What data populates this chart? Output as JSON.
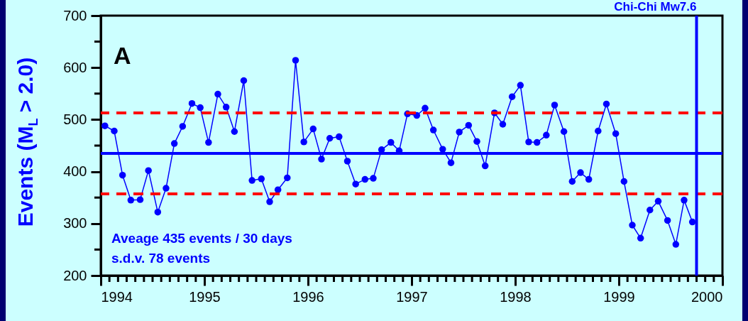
{
  "chart_data": {
    "type": "line",
    "ylabel": "Events (M$_{L}$ > 2.0)",
    "annotations": [
      "A",
      "Aveage 435 events / 30 days",
      "s.d.v. 78 events"
    ],
    "x": [
      1994.04,
      1994.13,
      1994.21,
      1994.29,
      1994.38,
      1994.46,
      1994.55,
      1994.63,
      1994.71,
      1994.79,
      1994.88,
      1994.96,
      1995.04,
      1995.13,
      1995.21,
      1995.29,
      1995.38,
      1995.46,
      1995.55,
      1995.63,
      1995.71,
      1995.8,
      1995.88,
      1995.96,
      1996.05,
      1996.13,
      1996.21,
      1996.3,
      1996.38,
      1996.46,
      1996.55,
      1996.63,
      1996.71,
      1996.8,
      1996.88,
      1996.96,
      1997.05,
      1997.13,
      1997.21,
      1997.3,
      1997.38,
      1997.46,
      1997.55,
      1997.63,
      1997.71,
      1997.8,
      1997.88,
      1997.97,
      1998.05,
      1998.13,
      1998.21,
      1998.3,
      1998.38,
      1998.47,
      1998.55,
      1998.63,
      1998.71,
      1998.8,
      1998.88,
      1998.97,
      1999.05,
      1999.13,
      1999.21,
      1999.3,
      1999.38,
      1999.47,
      1999.55,
      1999.63,
      1999.71
    ],
    "series": [
      {
        "color": "#0000ff",
        "values": [
          488,
          478,
          393,
          345,
          346,
          402,
          322,
          368,
          454,
          487,
          531,
          523,
          456,
          549,
          524,
          477,
          575,
          383,
          386,
          342,
          365,
          388,
          614,
          457,
          482,
          424,
          464,
          467,
          420,
          376,
          385,
          387,
          442,
          456,
          440,
          511,
          508,
          522,
          480,
          443,
          417,
          476,
          489,
          458,
          411,
          513,
          491,
          544,
          566,
          457,
          456,
          470,
          528,
          477,
          381,
          398,
          385,
          478,
          530,
          473,
          381,
          297,
          272,
          326,
          343,
          306,
          260,
          345,
          303
        ]
      }
    ],
    "marker": "circle",
    "line_style": "solid",
    "xlim": [
      1994,
      2000
    ],
    "ylim": [
      200,
      700
    ],
    "xticks": [
      1994,
      {
        "value": 1994.0833,
        "label": null
      },
      {
        "value": 1994.1667,
        "label": null
      },
      {
        "value": 1994.25,
        "label": null
      },
      {
        "value": 1994.3333,
        "label": null
      },
      {
        "value": 1994.4167,
        "label": null
      },
      {
        "value": 1994.5,
        "label": null
      },
      {
        "value": 1994.5833,
        "label": null
      },
      {
        "value": 1994.6667,
        "label": null
      },
      {
        "value": 1994.75,
        "label": null
      },
      {
        "value": 1994.8333,
        "label": null
      },
      {
        "value": 1994.9167,
        "label": null
      },
      1995,
      {
        "value": 1995.0833,
        "label": null
      },
      {
        "value": 1995.1667,
        "label": null
      },
      {
        "value": 1995.25,
        "label": null
      },
      {
        "value": 1995.3333,
        "label": null
      },
      {
        "value": 1995.4167,
        "label": null
      },
      {
        "value": 1995.5,
        "label": null
      },
      {
        "value": 1995.5833,
        "label": null
      },
      {
        "value": 1995.6667,
        "label": null
      },
      {
        "value": 1995.75,
        "label": null
      },
      {
        "value": 1995.8333,
        "label": null
      },
      {
        "value": 1995.9167,
        "label": null
      },
      1996,
      {
        "value": 1996.0833,
        "label": null
      },
      {
        "value": 1996.1667,
        "label": null
      },
      {
        "value": 1996.25,
        "label": null
      },
      {
        "value": 1996.3333,
        "label": null
      },
      {
        "value": 1996.4167,
        "label": null
      },
      {
        "value": 1996.5,
        "label": null
      },
      {
        "value": 1996.5833,
        "label": null
      },
      {
        "value": 1996.6667,
        "label": null
      },
      {
        "value": 1996.75,
        "label": null
      },
      {
        "value": 1996.8333,
        "label": null
      },
      {
        "value": 1996.9167,
        "label": null
      },
      1997,
      {
        "value": 1997.0833,
        "label": null
      },
      {
        "value": 1997.1667,
        "label": null
      },
      {
        "value": 1997.25,
        "label": null
      },
      {
        "value": 1997.3333,
        "label": null
      },
      {
        "value": 1997.4167,
        "label": null
      },
      {
        "value": 1997.5,
        "label": null
      },
      {
        "value": 1997.5833,
        "label": null
      },
      {
        "value": 1997.6667,
        "label": null
      },
      {
        "value": 1997.75,
        "label": null
      },
      {
        "value": 1997.8333,
        "label": null
      },
      {
        "value": 1997.9167,
        "label": null
      },
      1998,
      {
        "value": 1998.0833,
        "label": null
      },
      {
        "value": 1998.1667,
        "label": null
      },
      {
        "value": 1998.25,
        "label": null
      },
      {
        "value": 1998.3333,
        "label": null
      },
      {
        "value": 1998.4167,
        "label": null
      },
      {
        "value": 1998.5,
        "label": null
      },
      {
        "value": 1998.5833,
        "label": null
      },
      {
        "value": 1998.6667,
        "label": null
      },
      {
        "value": 1998.75,
        "label": null
      },
      {
        "value": 1998.8333,
        "label": null
      },
      {
        "value": 1998.9167,
        "label": null
      },
      1999,
      {
        "value": 1999.0833,
        "label": null
      },
      {
        "value": 1999.1667,
        "label": null
      },
      {
        "value": 1999.25,
        "label": null
      },
      {
        "value": 1999.3333,
        "label": null
      },
      {
        "value": 1999.4167,
        "label": null
      },
      {
        "value": 1999.5,
        "label": null
      },
      {
        "value": 1999.5833,
        "label": null
      },
      {
        "value": 1999.6667,
        "label": null
      },
      {
        "value": 1999.75,
        "label": null
      },
      {
        "value": 1999.8333,
        "label": null
      },
      {
        "value": 1999.9167,
        "label": null
      },
      2000
    ],
    "yticks": [
      200,
      {
        "value": 250,
        "label": null
      },
      300,
      {
        "value": 350,
        "label": null
      },
      400,
      {
        "value": 450,
        "label": null
      },
      500,
      {
        "value": 550,
        "label": null
      },
      600,
      {
        "value": 650,
        "label": null
      },
      700
    ],
    "ref_lines": [
      {
        "axis": "y",
        "value": 435,
        "color": "#0000ff",
        "line_style": "solid"
      },
      {
        "axis": "y",
        "value": 513,
        "color": "#ff0000",
        "line_style": "dashed"
      },
      {
        "axis": "y",
        "value": 357,
        "color": "#ff0000",
        "line_style": "dashed"
      },
      {
        "axis": "x",
        "value": 1999.75,
        "label": "Chi-Chi Mw7.6",
        "color": "#0000ff",
        "line_style": "solid"
      }
    ]
  }
}
